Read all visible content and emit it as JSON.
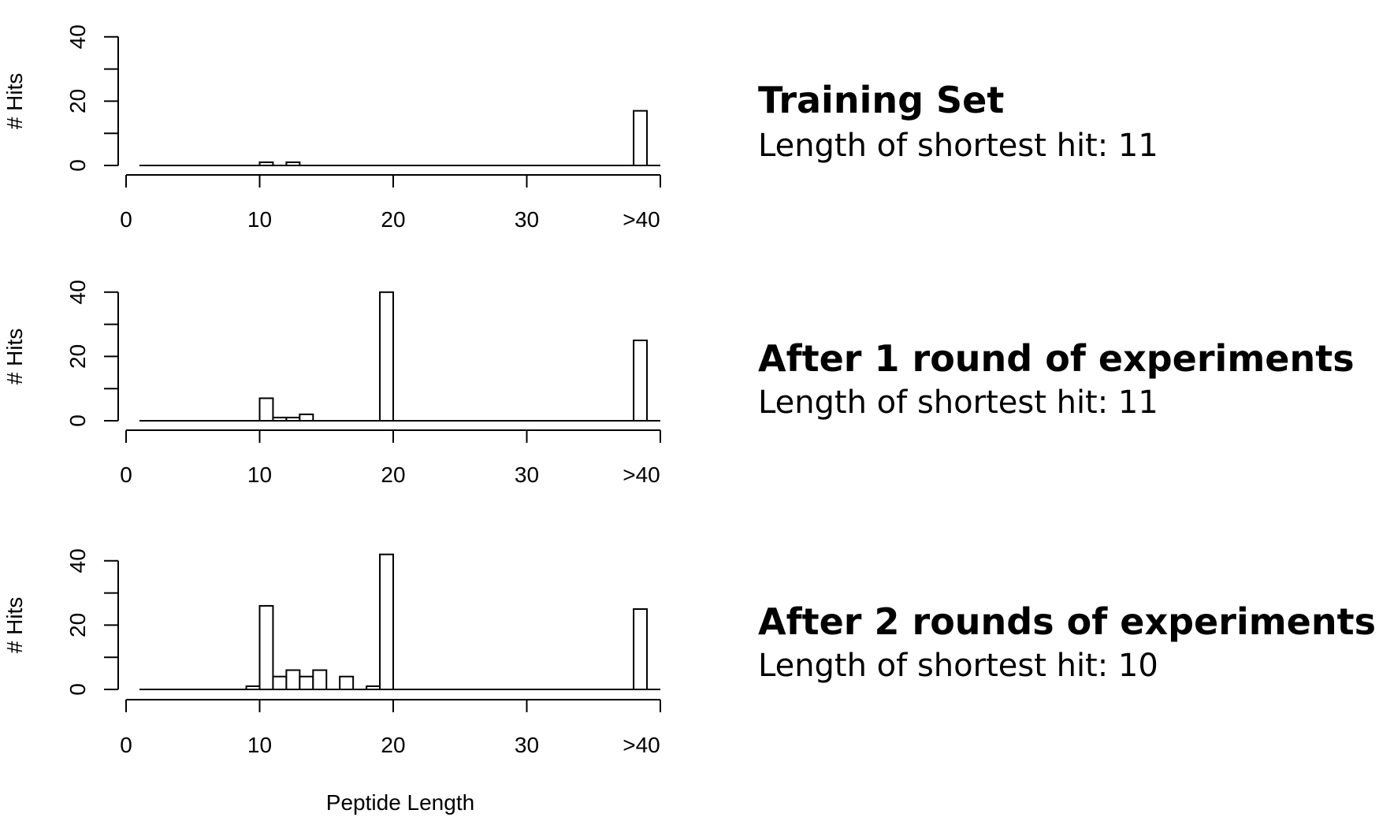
{
  "chart_data": [
    {
      "type": "bar",
      "ylabel": "# Hits",
      "xlabel": "",
      "xlim": [
        0,
        40
      ],
      "ylim": [
        0,
        40
      ],
      "x_ticks": [
        "0",
        "10",
        "20",
        "30",
        ">40"
      ],
      "y_ticks": [
        "0",
        "20",
        "40"
      ],
      "caption_title": "Training Set",
      "caption_subtitle": "Length of shortest hit: 11",
      "bars": [
        {
          "x": 11,
          "value": 1
        },
        {
          "x": 13,
          "value": 1
        },
        {
          "x": 39,
          "value": 17
        }
      ]
    },
    {
      "type": "bar",
      "ylabel": "# Hits",
      "xlabel": "",
      "xlim": [
        0,
        40
      ],
      "ylim": [
        0,
        40
      ],
      "x_ticks": [
        "0",
        "10",
        "20",
        "30",
        ">40"
      ],
      "y_ticks": [
        "0",
        "20",
        "40"
      ],
      "caption_title": "After 1 round of experiments",
      "caption_subtitle": "Length of shortest hit: 11",
      "bars": [
        {
          "x": 11,
          "value": 7
        },
        {
          "x": 12,
          "value": 1
        },
        {
          "x": 13,
          "value": 1
        },
        {
          "x": 14,
          "value": 2
        },
        {
          "x": 20,
          "value": 40
        },
        {
          "x": 39,
          "value": 25
        }
      ]
    },
    {
      "type": "bar",
      "ylabel": "# Hits",
      "xlabel": "Peptide Length",
      "xlim": [
        0,
        40
      ],
      "ylim": [
        0,
        40
      ],
      "x_ticks": [
        "0",
        "10",
        "20",
        "30",
        ">40"
      ],
      "y_ticks": [
        "0",
        "20",
        "40"
      ],
      "caption_title": "After 2 rounds of experiments",
      "caption_subtitle": "Length of shortest hit: 10",
      "bars": [
        {
          "x": 10,
          "value": 1
        },
        {
          "x": 11,
          "value": 26
        },
        {
          "x": 12,
          "value": 4
        },
        {
          "x": 13,
          "value": 6
        },
        {
          "x": 14,
          "value": 4
        },
        {
          "x": 15,
          "value": 6
        },
        {
          "x": 17,
          "value": 4
        },
        {
          "x": 19,
          "value": 1
        },
        {
          "x": 20,
          "value": 42
        },
        {
          "x": 39,
          "value": 25
        }
      ]
    }
  ]
}
